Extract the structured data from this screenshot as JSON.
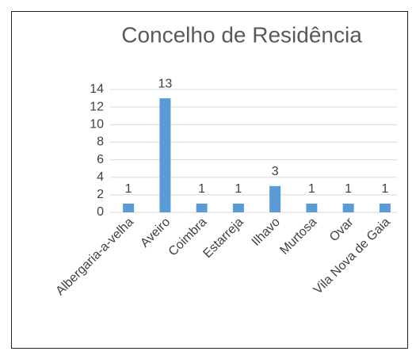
{
  "chart_data": {
    "type": "bar",
    "title": "Concelho de Residência",
    "categories": [
      "Albergaria-a-velha",
      "Aveiro",
      "Coimbra",
      "Estarreja",
      "Ilhavo",
      "Murtosa",
      "Ovar",
      "Vila Nova de Gaia"
    ],
    "values": [
      1,
      13,
      1,
      1,
      3,
      1,
      1,
      1
    ],
    "color": "#5b9bd5",
    "ylim": [
      0,
      14
    ],
    "yticks": [
      0,
      2,
      4,
      6,
      8,
      10,
      12,
      14
    ],
    "grid": true
  }
}
